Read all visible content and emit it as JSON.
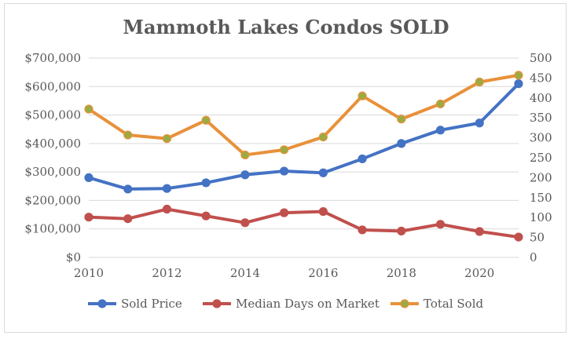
{
  "chart_data": {
    "type": "line",
    "title": "Mammoth Lakes Condos SOLD",
    "x": [
      2010,
      2011,
      2012,
      2013,
      2014,
      2015,
      2016,
      2017,
      2018,
      2019,
      2020,
      2021
    ],
    "x_tick_labels": [
      "2010",
      "2012",
      "2014",
      "2016",
      "2018",
      "2020"
    ],
    "y_left": {
      "range": [
        0,
        700000
      ],
      "tick_labels": [
        "$0",
        "$100,000",
        "$200,000",
        "$300,000",
        "$400,000",
        "$500,000",
        "$600,000",
        "$700,000"
      ]
    },
    "y_right": {
      "range": [
        0,
        500
      ],
      "tick_labels": [
        "0",
        "50",
        "100",
        "150",
        "200",
        "250",
        "300",
        "350",
        "400",
        "450",
        "500"
      ]
    },
    "grid": true,
    "legend_position": "bottom",
    "series": [
      {
        "name": "Sold Price",
        "axis": "left",
        "color": "#4472c4",
        "values": [
          280000,
          240000,
          242000,
          262000,
          290000,
          303000,
          297000,
          346000,
          400000,
          447000,
          472000,
          610000
        ]
      },
      {
        "name": "Median Days on Market",
        "axis": "right",
        "color": "#c0504d",
        "values": [
          101,
          97,
          121,
          104,
          87,
          112,
          115,
          69,
          66,
          83,
          65,
          51
        ]
      },
      {
        "name": "Total Sold",
        "axis": "right",
        "color": "#e8913a",
        "values": [
          372,
          307,
          298,
          344,
          257,
          270,
          302,
          405,
          347,
          385,
          440,
          457
        ]
      }
    ]
  },
  "colors": {
    "grid": "#d9d9d9",
    "text": "#595959",
    "marker": "#9bab41"
  }
}
